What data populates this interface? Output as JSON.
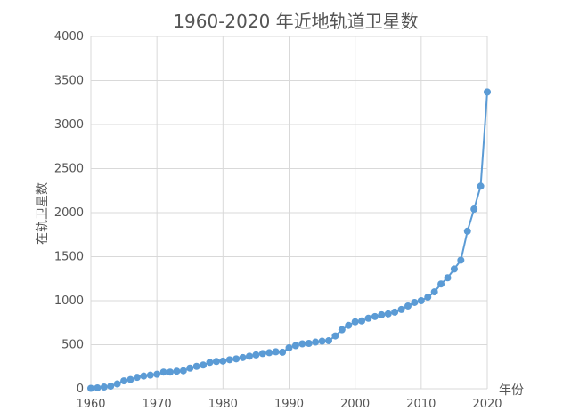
{
  "chart_data": {
    "type": "line",
    "title": "1960-2020 年近地轨道卫星数",
    "xlabel": "年份",
    "ylabel": "在轨卫星数",
    "xlim": [
      1960,
      2020
    ],
    "ylim": [
      0,
      4000
    ],
    "xticks": [
      1960,
      1970,
      1980,
      1990,
      2000,
      2010,
      2020
    ],
    "yticks": [
      0,
      500,
      1000,
      1500,
      2000,
      2500,
      3000,
      3500,
      4000
    ],
    "grid": true,
    "series": [
      {
        "color": "#5b9bd5",
        "x": [
          1960,
          1961,
          1962,
          1963,
          1964,
          1965,
          1966,
          1967,
          1968,
          1969,
          1970,
          1971,
          1972,
          1973,
          1974,
          1975,
          1976,
          1977,
          1978,
          1979,
          1980,
          1981,
          1982,
          1983,
          1984,
          1985,
          1986,
          1987,
          1988,
          1989,
          1990,
          1991,
          1992,
          1993,
          1994,
          1995,
          1996,
          1997,
          1998,
          1999,
          2000,
          2001,
          2002,
          2003,
          2004,
          2005,
          2006,
          2007,
          2008,
          2009,
          2010,
          2011,
          2012,
          2013,
          2014,
          2015,
          2016,
          2017,
          2018,
          2019,
          2020
        ],
        "y": [
          5,
          10,
          20,
          30,
          55,
          90,
          105,
          130,
          145,
          155,
          165,
          190,
          190,
          200,
          205,
          235,
          255,
          270,
          300,
          310,
          315,
          330,
          340,
          355,
          370,
          385,
          400,
          410,
          420,
          415,
          465,
          490,
          510,
          515,
          530,
          540,
          545,
          600,
          670,
          720,
          760,
          770,
          800,
          820,
          840,
          850,
          870,
          900,
          940,
          980,
          1000,
          1040,
          1100,
          1190,
          1260,
          1360,
          1460,
          1790,
          2040,
          2300,
          3370
        ]
      }
    ]
  }
}
